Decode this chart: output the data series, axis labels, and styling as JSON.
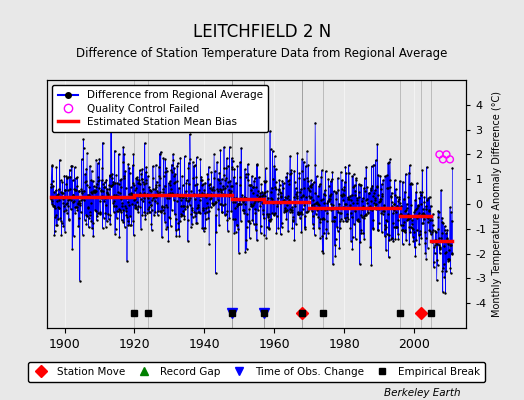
{
  "title": "LEITCHFIELD 2 N",
  "subtitle": "Difference of Station Temperature Data from Regional Average",
  "ylabel_right": "Monthly Temperature Anomaly Difference (°C)",
  "xlabel": "",
  "ylim": [
    -5,
    5
  ],
  "xlim": [
    1895,
    2015
  ],
  "xticks": [
    1900,
    1920,
    1940,
    1960,
    1980,
    2000
  ],
  "yticks_right": [
    -4,
    -3,
    -2,
    -1,
    0,
    1,
    2,
    3,
    4
  ],
  "bg_color": "#e8e8e8",
  "plot_bg_color": "#e8e8e8",
  "data_line_color": "#0000ff",
  "data_marker_color": "#000000",
  "bias_line_color": "#ff0000",
  "qc_failed_color": "#ff00ff",
  "station_move_color": "#ff0000",
  "record_gap_color": "#008000",
  "time_obs_color": "#0000ff",
  "empirical_break_color": "#000000",
  "seed": 42,
  "n_points": 1380,
  "start_year": 1896,
  "end_year": 2011,
  "bias_segments": [
    {
      "start": 1896,
      "end": 1920,
      "bias": 0.3
    },
    {
      "start": 1920,
      "end": 1948,
      "bias": 0.35
    },
    {
      "start": 1948,
      "end": 1957,
      "bias": 0.2
    },
    {
      "start": 1957,
      "end": 1970,
      "bias": 0.1
    },
    {
      "start": 1970,
      "end": 1996,
      "bias": -0.15
    },
    {
      "start": 1996,
      "end": 2005,
      "bias": -0.5
    },
    {
      "start": 2005,
      "end": 2011,
      "bias": -1.5
    }
  ],
  "station_moves": [
    1968,
    2002
  ],
  "record_gaps": [],
  "time_obs_changes": [
    1948,
    1957
  ],
  "empirical_breaks": [
    1920,
    1924,
    1948,
    1957,
    1968,
    1974,
    1996,
    2005
  ],
  "qc_failed_years": [
    2007,
    2008,
    2009,
    2010
  ],
  "marker_y": -4.4,
  "footer": "Berkeley Earth"
}
